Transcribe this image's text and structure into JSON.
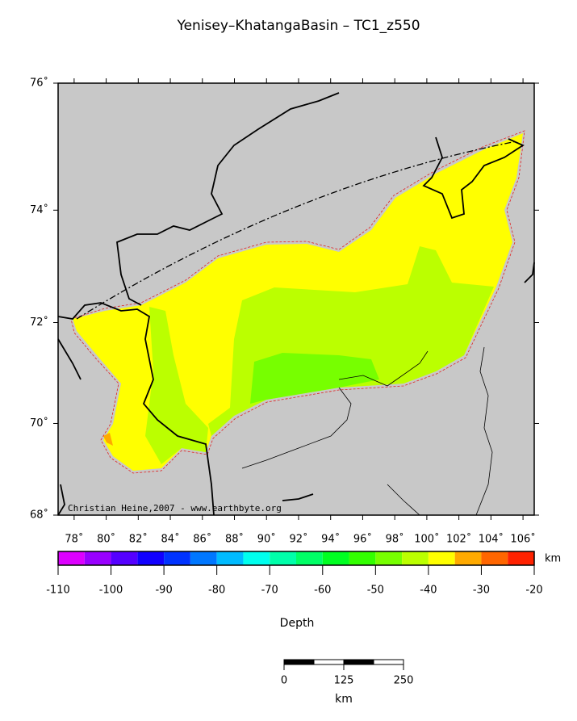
{
  "title": "Yenisey–KhatangaBasin – TC1_z550",
  "map": {
    "lat_ticks": [
      {
        "value": 76,
        "label": "76˚"
      },
      {
        "value": 74,
        "label": "74˚"
      },
      {
        "value": 72,
        "label": "72˚"
      },
      {
        "value": 70,
        "label": "70˚"
      },
      {
        "value": 68,
        "label": "68˚"
      }
    ],
    "latlim": [
      68,
      76
    ],
    "lon_ticks": [
      {
        "value": 78,
        "label": "78˚"
      },
      {
        "value": 80,
        "label": "80˚"
      },
      {
        "value": 82,
        "label": "82˚"
      },
      {
        "value": 84,
        "label": "84˚"
      },
      {
        "value": 86,
        "label": "86˚"
      },
      {
        "value": 88,
        "label": "88˚"
      },
      {
        "value": 90,
        "label": "90˚"
      },
      {
        "value": 92,
        "label": "92˚"
      },
      {
        "value": 94,
        "label": "94˚"
      },
      {
        "value": 96,
        "label": "96˚"
      },
      {
        "value": 98,
        "label": "98˚"
      },
      {
        "value": 100,
        "label": "100˚"
      },
      {
        "value": 102,
        "label": "102˚"
      },
      {
        "value": 104,
        "label": "104˚"
      },
      {
        "value": 106,
        "label": "106˚"
      }
    ],
    "lonlim": [
      77,
      106.7
    ],
    "credit": "Christian Heine,2007 - www.earthbyte.org"
  },
  "colorbar": {
    "lim": [
      -110,
      -20
    ],
    "ticks": [
      -110,
      -100,
      -90,
      -80,
      -70,
      -60,
      -50,
      -40,
      -30,
      -20
    ],
    "colors": [
      "#dd00ff",
      "#9900ff",
      "#5500ff",
      "#1100ff",
      "#0033ff",
      "#0077ff",
      "#00bbff",
      "#00ffee",
      "#00ffaa",
      "#00ff66",
      "#00ff22",
      "#33ff00",
      "#77ff00",
      "#bbff00",
      "#ffff00",
      "#ffaa00",
      "#ff6600",
      "#ff2200"
    ],
    "unit": "km",
    "label": "Depth"
  },
  "scalebar": {
    "lim": [
      0,
      250
    ],
    "ticks": [
      0,
      125,
      250
    ],
    "unit": "km"
  }
}
